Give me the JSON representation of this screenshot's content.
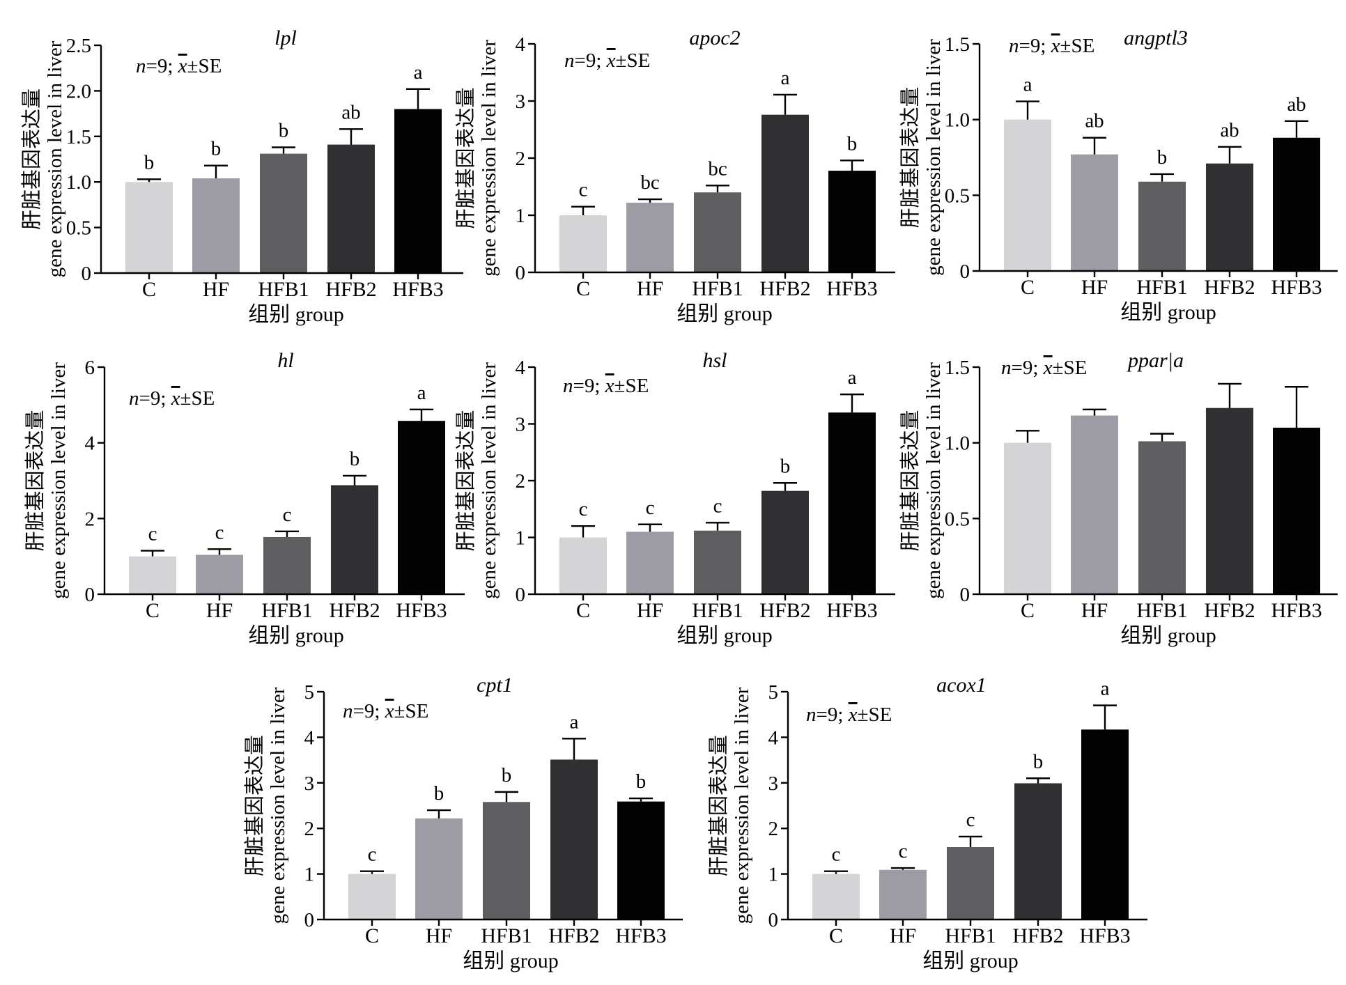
{
  "figure": {
    "y_axis_title_cn": "肝脏基因表达量",
    "y_axis_title_en": "gene expression level in liver",
    "x_axis_title": "组别 group",
    "note": {
      "n_label": "n",
      "n_value": "=9; ",
      "mean_symbol": "x",
      "mean_suffix": "±SE"
    },
    "bar_colors": [
      "#d4d4d6",
      "#9d9ca4",
      "#5e5e61",
      "#303033",
      "#030303"
    ]
  },
  "chart_data": [
    {
      "type": "bar",
      "title": "lpl",
      "categories": [
        "C",
        "HF",
        "HFB1",
        "HFB2",
        "HFB3"
      ],
      "values": [
        1.0,
        1.04,
        1.31,
        1.41,
        1.8
      ],
      "errors": [
        0.03,
        0.14,
        0.07,
        0.17,
        0.22
      ],
      "letters": [
        "b",
        "b",
        "b",
        "ab",
        "a"
      ],
      "ylim": [
        0,
        2.5
      ],
      "yticks": [
        "0",
        "0.5",
        "1.0",
        "1.5",
        "2.0",
        "2.5"
      ],
      "ylabel": "肝脏基因表达量 gene expression level in liver",
      "xlabel": "组别 group"
    },
    {
      "type": "bar",
      "title": "apoc2",
      "categories": [
        "C",
        "HF",
        "HFB1",
        "HFB2",
        "HFB3"
      ],
      "values": [
        1.0,
        1.22,
        1.4,
        2.76,
        1.78
      ],
      "errors": [
        0.15,
        0.06,
        0.12,
        0.35,
        0.18
      ],
      "letters": [
        "c",
        "bc",
        "bc",
        "a",
        "b"
      ],
      "ylim": [
        0,
        4
      ],
      "yticks": [
        "0",
        "1",
        "2",
        "3",
        "4"
      ],
      "ylabel": "肝脏基因表达量 gene expression level in liver",
      "xlabel": "组别 group"
    },
    {
      "type": "bar",
      "title": "angptl3",
      "categories": [
        "C",
        "HF",
        "HFB1",
        "HFB2",
        "HFB3"
      ],
      "values": [
        1.0,
        0.77,
        0.59,
        0.71,
        0.88
      ],
      "errors": [
        0.12,
        0.11,
        0.05,
        0.11,
        0.11
      ],
      "letters": [
        "a",
        "ab",
        "b",
        "ab",
        "ab"
      ],
      "ylim": [
        0,
        1.5
      ],
      "yticks": [
        "0",
        "0.5",
        "1.0",
        "1.5"
      ],
      "ylabel": "肝脏基因表达量 gene expression level in liver",
      "xlabel": "组别 group"
    },
    {
      "type": "bar",
      "title": "hl",
      "categories": [
        "C",
        "HF",
        "HFB1",
        "HFB2",
        "HFB3"
      ],
      "values": [
        1.0,
        1.04,
        1.51,
        2.88,
        4.58
      ],
      "errors": [
        0.15,
        0.15,
        0.15,
        0.25,
        0.3
      ],
      "letters": [
        "c",
        "c",
        "c",
        "b",
        "a"
      ],
      "ylim": [
        0,
        6
      ],
      "yticks": [
        "0",
        "2",
        "4",
        "6"
      ],
      "ylabel": "肝脏基因表达量 gene expression level in liver",
      "xlabel": "组别 group"
    },
    {
      "type": "bar",
      "title": "hsl",
      "categories": [
        "C",
        "HF",
        "HFB1",
        "HFB2",
        "HFB3"
      ],
      "values": [
        1.0,
        1.1,
        1.12,
        1.82,
        3.2
      ],
      "errors": [
        0.2,
        0.13,
        0.14,
        0.14,
        0.32
      ],
      "letters": [
        "c",
        "c",
        "c",
        "b",
        "a"
      ],
      "ylim": [
        0,
        4
      ],
      "yticks": [
        "0",
        "1",
        "2",
        "3",
        "4"
      ],
      "ylabel": "肝脏基因表达量 gene expression level in liver",
      "xlabel": "组别 group"
    },
    {
      "type": "bar",
      "title": "ppar|a",
      "categories": [
        "C",
        "HF",
        "HFB1",
        "HFB2",
        "HFB3"
      ],
      "values": [
        1.0,
        1.18,
        1.01,
        1.23,
        1.1
      ],
      "errors": [
        0.08,
        0.04,
        0.05,
        0.16,
        0.27
      ],
      "letters": [
        "",
        "",
        "",
        "",
        ""
      ],
      "ylim": [
        0,
        1.5
      ],
      "yticks": [
        "0",
        "0.5",
        "1.0",
        "1.5"
      ],
      "ylabel": "肝脏基因表达量 gene expression level in liver",
      "xlabel": "组别 group"
    },
    {
      "type": "bar",
      "title": "cpt1",
      "categories": [
        "C",
        "HF",
        "HFB1",
        "HFB2",
        "HFB3"
      ],
      "values": [
        1.0,
        2.22,
        2.58,
        3.51,
        2.59
      ],
      "errors": [
        0.06,
        0.18,
        0.22,
        0.46,
        0.07
      ],
      "letters": [
        "c",
        "b",
        "b",
        "a",
        "b"
      ],
      "ylim": [
        0,
        5
      ],
      "yticks": [
        "0",
        "1",
        "2",
        "3",
        "4",
        "5"
      ],
      "ylabel": "肝脏基因表达量 gene expression level in liver",
      "xlabel": "组别 group"
    },
    {
      "type": "bar",
      "title": "acox1",
      "categories": [
        "C",
        "HF",
        "HFB1",
        "HFB2",
        "HFB3"
      ],
      "values": [
        1.0,
        1.09,
        1.59,
        2.99,
        4.17
      ],
      "errors": [
        0.06,
        0.04,
        0.23,
        0.11,
        0.53
      ],
      "letters": [
        "c",
        "c",
        "c",
        "b",
        "a"
      ],
      "ylim": [
        0,
        5
      ],
      "yticks": [
        "0",
        "1",
        "2",
        "3",
        "4",
        "5"
      ],
      "ylabel": "肝脏基因表达量 gene expression level in liver",
      "xlabel": "组别 group"
    }
  ]
}
